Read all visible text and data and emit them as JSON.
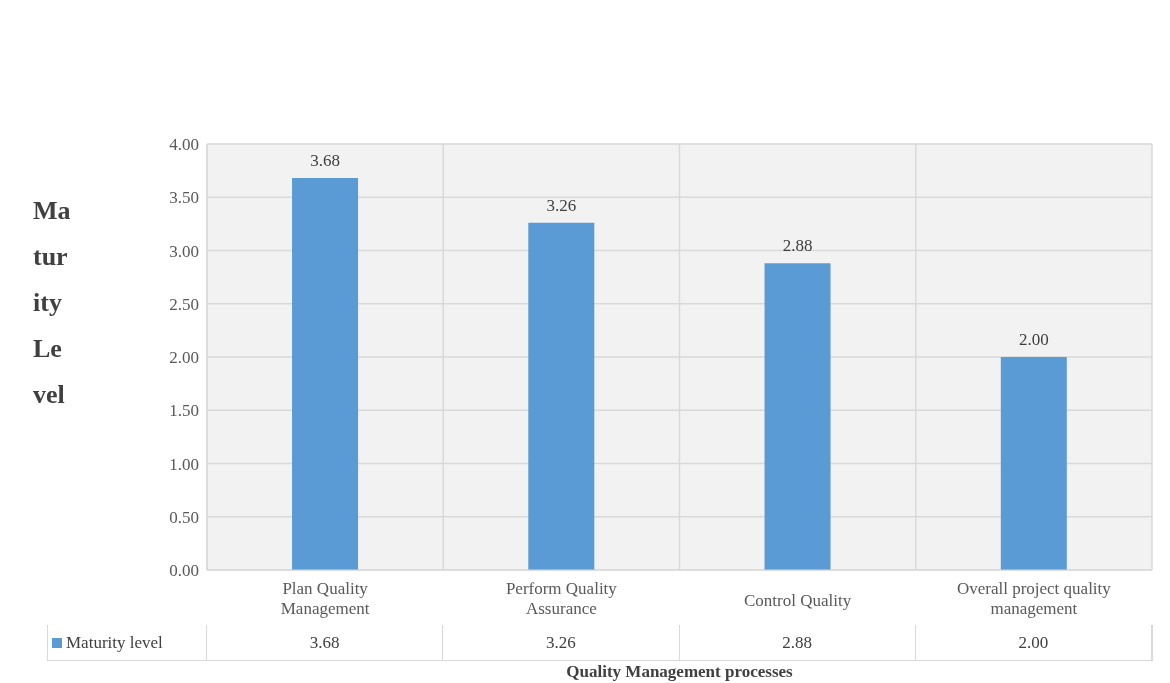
{
  "chart_data": {
    "type": "bar",
    "xlabel": "Quality Management processes",
    "ylabel": "Maturity Level",
    "categories": [
      "Plan Quality Management",
      "Perform Quality Assurance",
      "Control Quality",
      "Overall project quality management"
    ],
    "series": [
      {
        "name": "Maturity level",
        "color": "#5b9bd5",
        "values": [
          3.68,
          3.26,
          2.88,
          2.0
        ],
        "value_labels": [
          "3.68",
          "3.26",
          "2.88",
          "2.00"
        ]
      }
    ],
    "ylim": [
      0,
      4
    ],
    "yticks": [
      {
        "value": 0,
        "label": "0.00"
      },
      {
        "value": 0.5,
        "label": "0.50"
      },
      {
        "value": 1,
        "label": "1.00"
      },
      {
        "value": 1.5,
        "label": "1.50"
      },
      {
        "value": 2,
        "label": "2.00"
      },
      {
        "value": 2.5,
        "label": "2.50"
      },
      {
        "value": 3,
        "label": "3.00"
      },
      {
        "value": 3.5,
        "label": "3.50"
      },
      {
        "value": 4,
        "label": "4.00"
      }
    ],
    "grid": true,
    "legend": "bottom"
  }
}
